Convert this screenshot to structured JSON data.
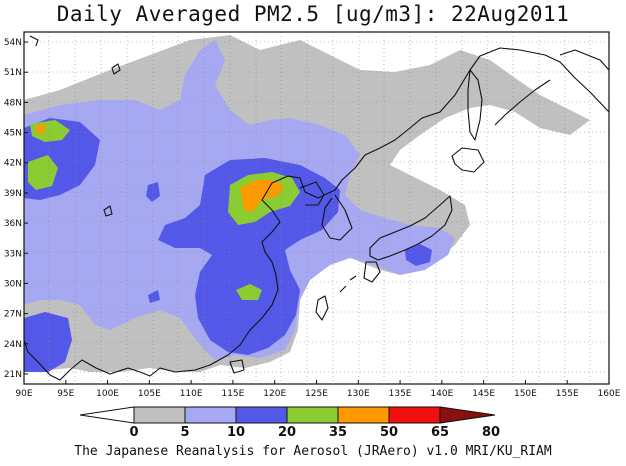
{
  "title": "Daily Averaged PM2.5 [ug/m3]: 22Aug2011",
  "credit": "The Japanese Reanalysis for Aerosol (JRAero) v1.0 MRI/KU_RIAM",
  "map": {
    "lon_range": [
      90,
      160
    ],
    "lat_range": [
      20,
      55
    ],
    "lon_ticks": [
      "90E",
      "95E",
      "100E",
      "105E",
      "110E",
      "115E",
      "120E",
      "125E",
      "130E",
      "135E",
      "140E",
      "145E",
      "150E",
      "155E",
      "160E"
    ],
    "lat_ticks": [
      "54N",
      "51N",
      "48N",
      "45N",
      "42N",
      "39N",
      "36N",
      "33N",
      "30N",
      "27N",
      "24N",
      "21N"
    ],
    "grid": true
  },
  "colorbar": {
    "labels": [
      "0",
      "5",
      "10",
      "20",
      "35",
      "50",
      "65",
      "80"
    ],
    "colors": [
      "#ffffff",
      "#c0c0c0",
      "#a7a8f2",
      "#5458e8",
      "#8ccc33",
      "#ff9900",
      "#f01010",
      "#8a1010"
    ]
  }
}
